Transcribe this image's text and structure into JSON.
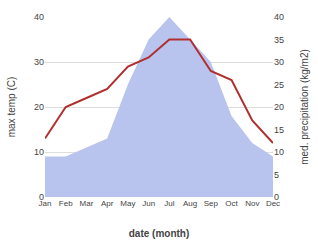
{
  "chart_data": {
    "type": "line",
    "categories": [
      "Jan",
      "Feb",
      "Mar",
      "Apr",
      "May",
      "Jun",
      "Jul",
      "Aug",
      "Sep",
      "Oct",
      "Nov",
      "Dec"
    ],
    "series": [
      {
        "type": "area",
        "color": "#b8c4ee",
        "axis": "y2",
        "values": [
          9,
          9,
          11,
          13,
          25,
          35,
          40,
          35,
          30,
          18,
          12,
          9
        ]
      },
      {
        "type": "line",
        "color": "#b03030",
        "values": [
          13,
          20,
          22,
          24,
          29,
          31,
          35,
          35,
          28,
          26,
          17,
          12
        ]
      }
    ],
    "xlabel": "date (month)",
    "ylabel": "max temp (C)",
    "y2label": "med. precipitation (kg/m2)",
    "ylim": [
      0,
      40
    ],
    "yticks": [
      0,
      10,
      20,
      30,
      40
    ],
    "y2lim": [
      0,
      40
    ],
    "y2ticks": [
      0,
      5,
      10,
      15,
      20,
      25,
      30,
      35,
      40
    ],
    "grid": true
  }
}
